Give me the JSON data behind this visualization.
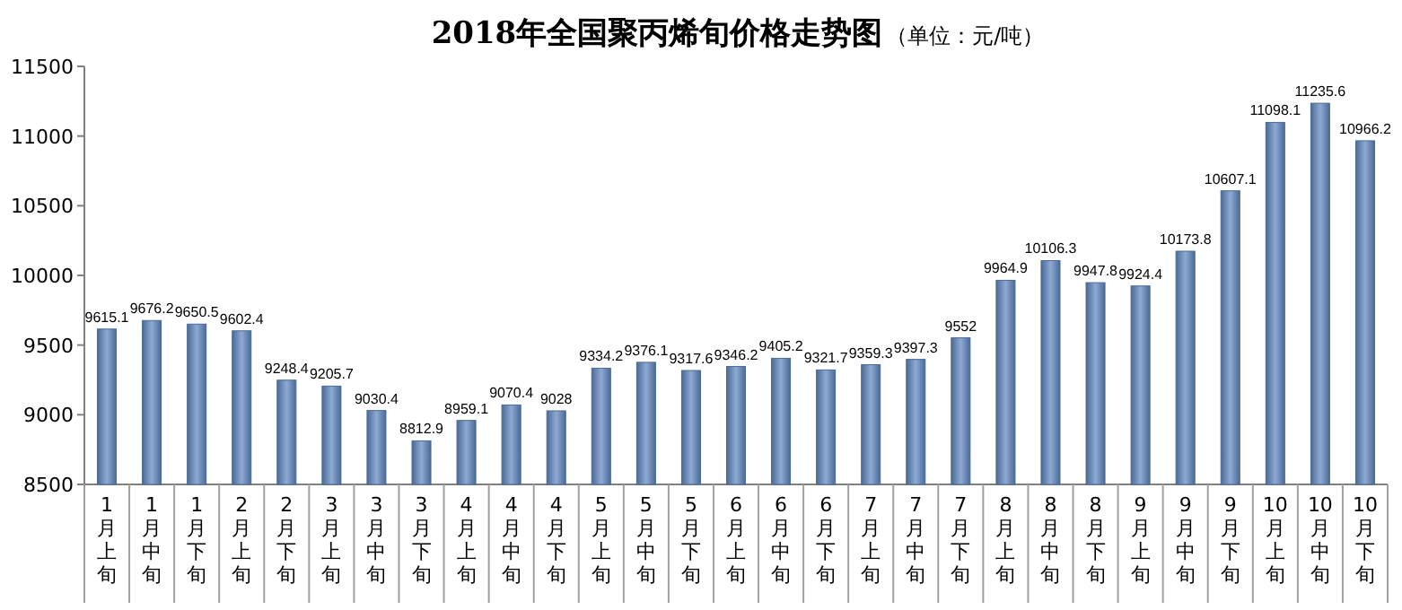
{
  "chart_data": {
    "type": "bar",
    "title": "2018年全国聚丙烯旬价格走势图",
    "subtitle": "（单位：元/吨）",
    "categories": [
      "1月上旬",
      "1月中旬",
      "1月下旬",
      "2月上旬",
      "2月下旬",
      "3月上旬",
      "3月中旬",
      "3月下旬",
      "4月上旬",
      "4月中旬",
      "4月下旬",
      "5月上旬",
      "5月中旬",
      "5月下旬",
      "6月上旬",
      "6月中旬",
      "6月下旬",
      "7月上旬",
      "7月中旬",
      "7月下旬",
      "8月上旬",
      "8月中旬",
      "8月下旬",
      "9月上旬",
      "9月中旬",
      "9月下旬",
      "10月上旬",
      "10月中旬",
      "10月下旬"
    ],
    "values": [
      9615.1,
      9676.2,
      9650.5,
      9602.4,
      9248.4,
      9205.7,
      9030.4,
      8812.9,
      8959.1,
      9070.4,
      9028,
      9334.2,
      9376.1,
      9317.6,
      9346.2,
      9405.2,
      9321.7,
      9359.3,
      9397.3,
      9552,
      9964.9,
      10106.3,
      9947.8,
      9924.4,
      10173.8,
      10607.1,
      11098.1,
      11235.6,
      10966.2
    ],
    "color": "#4a6a96",
    "ylim": [
      8500,
      11500
    ],
    "yticks": [
      8500,
      9000,
      9500,
      10000,
      10500,
      11000,
      11500
    ],
    "data_labels": true,
    "grid": false
  }
}
